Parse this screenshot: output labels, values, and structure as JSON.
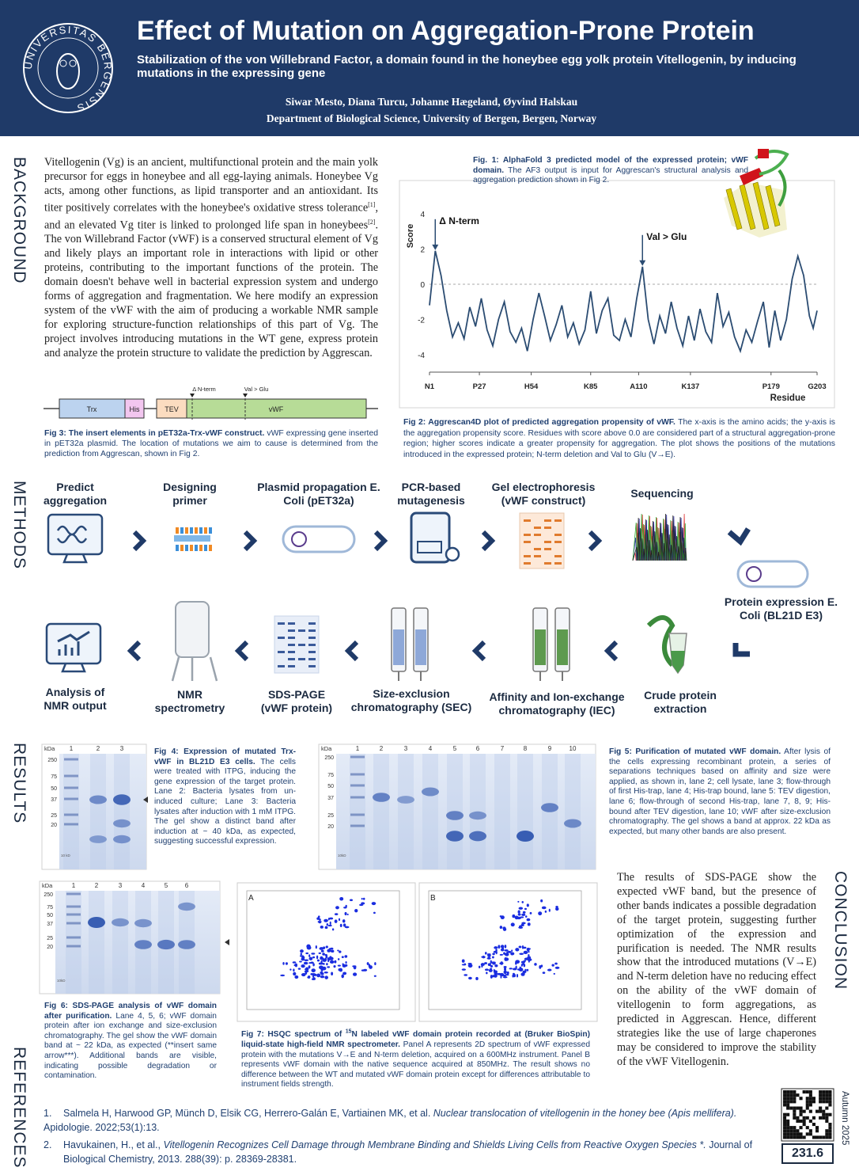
{
  "header": {
    "logo_text": "UNIVERSITAS BERGENSIS",
    "title": "Effect of Mutation on Aggregation-Prone Protein",
    "subtitle": "Stabilization of the von Willebrand Factor, a domain found in the honeybee egg yolk protein Vitellogenin, by inducing mutations in the expressing gene",
    "authors": "Siwar Mesto, Diana Turcu, Johanne Hægeland, Øyvind Halskau",
    "affiliation": "Department of Biological Science, University of Bergen, Bergen, Norway"
  },
  "sections": {
    "background": "BACKGROUND",
    "methods": "METHODS",
    "results": "RESULTS",
    "conclusion": "CONCLUSION",
    "references": "REFERENCES"
  },
  "background": {
    "text": [
      "Vitellogenin (Vg) is an ancient, multifunctional protein and the main yolk precursor for eggs in honeybee and all egg-laying animals. Honeybee Vg acts, among other functions, as lipid transporter and an antioxidant. Its titer positively correlates with the honeybee's oxidative stress tolerance",
      ", and an elevated Vg titer is linked to prolonged life span in honeybees",
      ". The von Willebrand Factor (vWF) is a conserved structural element of Vg and likely plays an important role in interactions with lipid or other proteins, contributing to the important functions of the protein. The domain doesn't behave well in bacterial expression system and undergo forms of aggregation and fragmentation. We here modify an expression system of the vWF with the aim of producing a workable NMR sample for exploring structure-function relationships of this part of Vg. The project involves introducing mutations in the WT gene, express protein and analyze the protein structure to validate the prediction by Aggrescan."
    ],
    "refs": [
      "[1]",
      "[2]"
    ]
  },
  "fig1": {
    "title": "Fig. 1: AlphaFold 3 predicted model of the expressed protein; vWF domain.",
    "text": "The AF3 output is input for Aggrescan's structural analysis and aggregation prediction shown in Fig 2."
  },
  "chart_data": {
    "type": "line",
    "xlabel": "Residue",
    "ylabel": "Score",
    "color": "#2b4c72",
    "x": [
      1,
      4,
      7,
      10,
      13,
      16,
      19,
      22,
      25,
      28,
      31,
      34,
      37,
      40,
      43,
      46,
      49,
      52,
      55,
      58,
      61,
      64,
      67,
      70,
      73,
      76,
      79,
      82,
      85,
      88,
      91,
      94,
      97,
      100,
      103,
      106,
      109,
      112,
      115,
      118,
      121,
      124,
      127,
      130,
      133,
      136,
      139,
      142,
      145,
      148,
      151,
      154,
      157,
      160,
      163,
      166,
      169,
      172,
      175,
      178,
      181,
      184,
      187,
      190,
      193,
      196,
      199,
      201,
      203
    ],
    "values": [
      -1.2,
      1.9,
      0.5,
      -1.5,
      -3.0,
      -2.2,
      -3.1,
      -1.3,
      -2.4,
      -0.8,
      -2.6,
      -3.5,
      -2.0,
      -1.0,
      -2.7,
      -3.3,
      -2.5,
      -3.8,
      -2.0,
      -0.5,
      -1.8,
      -3.2,
      -2.3,
      -1.2,
      -3.0,
      -2.2,
      -3.4,
      -2.6,
      -0.4,
      -2.8,
      -1.5,
      -0.8,
      -2.9,
      -3.2,
      -2.0,
      -3.0,
      -0.8,
      1.0,
      -2.0,
      -3.4,
      -1.8,
      -2.8,
      -1.0,
      -2.5,
      -3.5,
      -1.8,
      -3.2,
      -1.4,
      -2.7,
      -3.3,
      -0.5,
      -2.4,
      -1.6,
      -3.0,
      -3.8,
      -2.6,
      -3.3,
      -2.1,
      -1.0,
      -3.6,
      -1.5,
      -3.2,
      -2.0,
      0.3,
      1.6,
      0.5,
      -1.8,
      -2.5,
      -1.5
    ],
    "xlim": [
      1,
      203
    ],
    "xticks": [
      {
        "value": 1,
        "label": "N1"
      },
      {
        "value": 27,
        "label": "P27"
      },
      {
        "value": 54,
        "label": "H54"
      },
      {
        "value": 85,
        "label": "K85"
      },
      {
        "value": 110,
        "label": "A110"
      },
      {
        "value": 137,
        "label": "K137"
      },
      {
        "value": 179,
        "label": "P179"
      },
      {
        "value": 203,
        "label": "G203"
      }
    ],
    "ylim": [
      -5,
      5
    ],
    "yticks": [
      -4,
      -2,
      0,
      2,
      4
    ],
    "annotations": [
      {
        "text": "Δ N-term",
        "x": 4
      },
      {
        "text": "Val > Glu",
        "x": 112
      }
    ]
  },
  "fig2": {
    "title": "Fig 2: Aggrescan4D plot of predicted aggregation propensity of vWF.",
    "text": "The x-axis is the amino acids; the y-axis is the aggregation propensity score. Residues with score above 0.0 are considered part of a structural aggregation-prone region; higher scores indicate a greater propensity for aggregation. The plot shows the positions of the mutations introduced in the expressed protein; N-term deletion and Val to Glu (V→E)."
  },
  "fig3": {
    "segments": [
      "Trx",
      "His",
      "TEV",
      "vWF"
    ],
    "markers": [
      "Δ N-term",
      "Val > Glu"
    ],
    "title": "Fig 3: The insert elements in pET32a-Trx-vWF construct.",
    "text": "vWF expressing gene inserted in pET32a plasmid. The location of mutations we aim to cause is determined from the prediction from Aggrescan, shown in Fig 2."
  },
  "methods": {
    "steps": [
      "Predict aggregation",
      "Designing primer",
      "Plasmid propagation E. Coli (pET32a)",
      "PCR-based mutagenesis",
      "Gel electrophoresis (vWF construct)",
      "Sequencing",
      "Protein expression E. Coli (BL21D E3)",
      "Crude protein extraction",
      "Affinity and Ion-exchange chromatography (IEC)",
      "Size-exclusion chromatography (SEC)",
      "SDS-PAGE (vWF protein)",
      "NMR spectrometry",
      "Analysis of NMR output"
    ]
  },
  "fig4": {
    "title": "Fig 4: Expression of mutated Trx-vWF in BL21D E3 cells.",
    "text": "The cells were treated with ITPG, inducing the gene expression of the target protein. Lane 2: Bacteria lysates from un-induced culture; Lane 3: Bacteria lysates after induction with 1 mM ITPG. The gel show a distinct band after induction at ~ 40 kDa, as expected, suggesting successful expression.",
    "gel": {
      "unit": "kDa",
      "lanes": [
        "1",
        "2",
        "3"
      ],
      "markers": [
        "250",
        "75",
        "50",
        "37",
        "25",
        "20"
      ],
      "low_marker": "10 kD"
    }
  },
  "fig5": {
    "title": "Fig 5: Purification of mutated vWF domain.",
    "text": "After lysis of the cells expressing recombinant protein, a series of separations techniques based on affinity and size were applied, as shown in, lane 2; cell lysate, lane 3; flow-through of first His-trap, lane 4; His-trap bound, lane 5: TEV digestion, lane 6; flow-through of second His-trap, lane 7, 8, 9; His-bound after TEV digestion, lane 10;  vWF after size-exclusion chromatography. The gel shows a band at approx. 22 kDa as expected, but  many other bands are also present.",
    "gel": {
      "unit": "kDa",
      "lanes": [
        "1",
        "2",
        "3",
        "4",
        "5",
        "6",
        "7",
        "8",
        "9",
        "10"
      ],
      "markers": [
        "250",
        "75",
        "50",
        "37",
        "25",
        "20"
      ],
      "low_marker": "10kD"
    }
  },
  "fig6": {
    "title": "Fig 6: SDS-PAGE analysis of vWF domain after purification.",
    "text": "Lane 4, 5, 6; vWF domain protein after ion exchange and size-exclusion chromatography. The gel show the vWF domain band at ~ 22 kDa, as expected (**insert same arrow***). Additional bands are visible, indicating possible degradation or contamination.",
    "gel": {
      "unit": "kDa",
      "lanes": [
        "1",
        "2",
        "3",
        "4",
        "5",
        "6"
      ],
      "markers": [
        "250",
        "75",
        "50",
        "37",
        "25",
        "20"
      ],
      "low_marker": "10kD"
    }
  },
  "fig7": {
    "panels": [
      "A",
      "B"
    ],
    "title": [
      "Fig 7: HSQC spectrum of ",
      "15",
      "N labeled vWF domain protein recorded at (Bruker BioSpin) liquid-state high-field NMR spectrometer."
    ],
    "text": "Panel A represents 2D spectrum of vWF expressed protein with the mutations V→E and N-term deletion, acquired on a 600MHz instrument. Panel B represents vWF domain with the native sequence acquired at 850MHz. The result shows no difference between the WT and mutated vWF domain protein except for differences attributable to instrument fields strength."
  },
  "conclusion": "The results of SDS-PAGE show the expected vWF band, but the presence of other bands indicates a possible degradation of the target protein, suggesting further optimization of the expression and purification is needed. The NMR results show that the introduced mutations (V→E) and N-term deletion have no reducing effect on the ability of the vWF domain of vitellogenin to form aggregations, as predicted in Aggrescan.  Hence, different strategies like the use of large chaperones may be considered to improve the stability of the vWF Vitellogenin.",
  "references": [
    {
      "num": "1.",
      "authors": "Salmela H, Harwood GP, Münch D, Elsik CG, Herrero-Galán E, Vartiainen MK, et al.",
      "title": "Nuclear translocation of vitellogenin in the honey bee (Apis mellifera).",
      "source": "Apidologie. 2022;53(1):13."
    },
    {
      "num": "2.",
      "authors": "Havukainen, H., et al.,",
      "title": "Vitellogenin Recognizes Cell Damage through Membrane Binding and Shields Living Cells from Reactive Oxygen Species *.",
      "source": "Journal of Biological Chemistry, 2013. 288(39): p. 28369-28381."
    }
  ],
  "footer": {
    "code": "231.6",
    "date": "Autumn 2025"
  }
}
